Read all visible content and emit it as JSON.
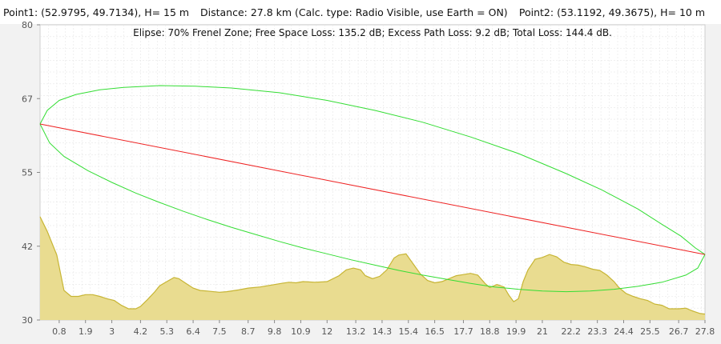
{
  "header": {
    "point1": "Point1: (52.9795, 49.7134), H= 15 m",
    "distance": "Distance: 27.8 km (Calc. type: Radio Visible, use Earth = ON)",
    "point2": "Point2: (53.1192, 49.3675), H= 10 m"
  },
  "chart_data": {
    "type": "area",
    "subtitle": "Elipse: 70% Frenel Zone;  Free Space Loss: 135.2 dB;  Excess Path Loss: 9.2 dB;   Total Loss: 144.4 dB.",
    "xlim": [
      0,
      27.8
    ],
    "ylim": [
      30,
      80
    ],
    "x_ticks": [
      "0.8",
      "1.9",
      "3",
      "4.2",
      "5.3",
      "6.4",
      "7.5",
      "8.7",
      "9.8",
      "10.9",
      "12",
      "13.2",
      "14.3",
      "15.4",
      "16.5",
      "17.7",
      "18.8",
      "19.9",
      "21",
      "22.2",
      "23.3",
      "24.4",
      "25.5",
      "26.7",
      "27.8"
    ],
    "y_ticks": [
      "30",
      "42",
      "55",
      "67",
      "80"
    ],
    "grid": true,
    "colors": {
      "terrain_fill": "#e9dc90",
      "terrain_line": "#c7b534",
      "los_line": "#ee2222",
      "fresnel": "#33dd33",
      "grid": "#e6e6e6"
    },
    "line_of_sight": {
      "x": [
        0,
        27.8
      ],
      "y": [
        63.2,
        41.1
      ]
    },
    "fresnel_zone": {
      "upper": {
        "x": [
          0,
          0.3,
          0.8,
          1.5,
          2.5,
          3.5,
          5,
          6.5,
          8,
          10,
          12,
          14,
          16,
          18,
          20,
          22,
          23.5,
          25,
          26,
          26.8,
          27.4,
          27.8
        ],
        "y": [
          63.2,
          65.5,
          67.2,
          68.2,
          69.0,
          69.4,
          69.7,
          69.6,
          69.3,
          68.5,
          67.2,
          65.5,
          63.5,
          61.0,
          58.2,
          54.8,
          52.0,
          48.8,
          46.2,
          44.2,
          42.2,
          41.1
        ]
      },
      "lower": {
        "x": [
          0,
          0.4,
          1,
          2,
          3,
          4,
          5,
          6,
          7,
          8,
          9,
          10,
          11,
          12,
          13,
          14,
          15,
          16,
          17,
          18,
          19,
          20,
          21,
          22,
          23,
          24,
          25,
          26,
          27,
          27.5,
          27.8
        ],
        "y": [
          63.2,
          60.0,
          57.7,
          55.3,
          53.3,
          51.5,
          49.9,
          48.4,
          47.0,
          45.7,
          44.5,
          43.3,
          42.2,
          41.2,
          40.2,
          39.3,
          38.4,
          37.6,
          36.9,
          36.2,
          35.6,
          35.2,
          34.9,
          34.8,
          34.9,
          35.2,
          35.7,
          36.4,
          37.6,
          38.8,
          41.1
        ]
      }
    },
    "terrain": {
      "x": [
        0,
        0.3,
        0.7,
        1.0,
        1.3,
        1.6,
        1.9,
        2.2,
        2.5,
        2.8,
        3.1,
        3.4,
        3.7,
        4.0,
        4.2,
        4.5,
        4.8,
        5.0,
        5.3,
        5.6,
        5.8,
        6.1,
        6.4,
        6.7,
        7.0,
        7.5,
        7.8,
        8.3,
        8.7,
        9.2,
        9.5,
        9.8,
        10.1,
        10.4,
        10.7,
        11,
        11.5,
        12,
        12.5,
        12.8,
        13.1,
        13.4,
        13.6,
        13.9,
        14.2,
        14.5,
        14.8,
        15.0,
        15.3,
        15.6,
        15.9,
        16.2,
        16.5,
        16.8,
        17.1,
        17.4,
        17.7,
        18.0,
        18.3,
        18.6,
        18.8,
        19.1,
        19.4,
        19.6,
        19.8,
        20.0,
        20.2,
        20.4,
        20.7,
        21.0,
        21.3,
        21.6,
        21.9,
        22.2,
        22.5,
        22.8,
        23.1,
        23.4,
        23.7,
        24.0,
        24.2,
        24.5,
        24.8,
        25.1,
        25.4,
        25.7,
        26.0,
        26.3,
        26.7,
        27.0,
        27.3,
        27.6,
        27.8
      ],
      "y": [
        47.5,
        45,
        41,
        35,
        34,
        34,
        34.3,
        34.3,
        34,
        33.6,
        33.3,
        32.5,
        31.9,
        31.9,
        32.3,
        33.5,
        34.8,
        35.8,
        36.5,
        37.2,
        37,
        36.2,
        35.4,
        35,
        34.9,
        34.7,
        34.8,
        35.1,
        35.4,
        35.6,
        35.8,
        36,
        36.2,
        36.4,
        36.3,
        36.5,
        36.4,
        36.5,
        37.5,
        38.5,
        38.8,
        38.5,
        37.5,
        37,
        37.4,
        38.5,
        40.5,
        41,
        41.2,
        39.5,
        37.8,
        36.7,
        36.3,
        36.5,
        37,
        37.5,
        37.7,
        37.9,
        37.6,
        36.2,
        35.5,
        36,
        35.6,
        34.2,
        33.1,
        33.6,
        36.5,
        38.5,
        40.3,
        40.6,
        41.1,
        40.7,
        39.8,
        39.4,
        39.3,
        39,
        38.6,
        38.4,
        37.6,
        36.5,
        35.5,
        34.5,
        34,
        33.6,
        33.3,
        32.7,
        32.5,
        31.9,
        31.9,
        32,
        31.5,
        31.1,
        31
      ]
    }
  }
}
